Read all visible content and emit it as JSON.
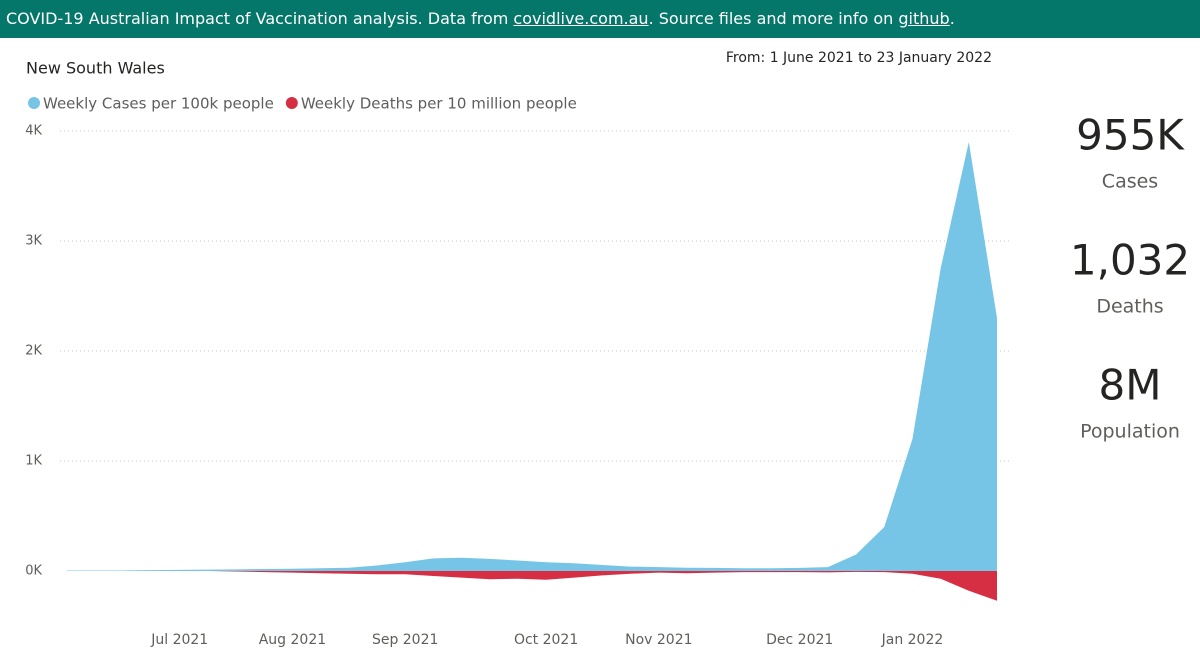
{
  "header": {
    "parts": [
      "COVID-19 Australian Impact of Vaccination analysis. Data from ",
      "covidlive.com.au",
      ". Source files and more info on ",
      "github",
      "."
    ]
  },
  "chart_data": {
    "type": "area",
    "subtitle": "New South Wales",
    "date_range": "From: 1 June 2021 to 23 January 2022",
    "categories": [
      null,
      null,
      null,
      null,
      "Jul 2021",
      null,
      null,
      null,
      "Aug 2021",
      null,
      null,
      null,
      "Sep 2021",
      null,
      null,
      null,
      null,
      "Oct 2021",
      null,
      null,
      null,
      "Nov 2021",
      null,
      null,
      null,
      null,
      "Dec 2021",
      null,
      null,
      null,
      "Jan 2022",
      null,
      null,
      null
    ],
    "series": [
      {
        "name": "Weekly Cases per 100k people",
        "color": "#76c5e6",
        "values": [
          5,
          5,
          5,
          8,
          10,
          12,
          15,
          18,
          20,
          25,
          30,
          50,
          80,
          115,
          120,
          110,
          95,
          80,
          70,
          55,
          40,
          35,
          30,
          28,
          25,
          25,
          28,
          35,
          150,
          400,
          1200,
          2750,
          3900,
          2300
        ]
      },
      {
        "name": "Weekly Deaths per 10 million people",
        "color": "#d62f43",
        "values": [
          0,
          0,
          0,
          0,
          0,
          0,
          -5,
          -10,
          -15,
          -20,
          -25,
          -30,
          -30,
          -45,
          -60,
          -75,
          -70,
          -80,
          -60,
          -40,
          -25,
          -15,
          -20,
          -15,
          -10,
          -10,
          -10,
          -12,
          -8,
          -10,
          -25,
          -70,
          -180,
          -270
        ]
      }
    ],
    "ylim": [
      -350,
      4000
    ],
    "yticks": [
      {
        "value": 0,
        "label": "0K"
      },
      {
        "value": 1000,
        "label": "1K"
      },
      {
        "value": 2000,
        "label": "2K"
      },
      {
        "value": 3000,
        "label": "3K"
      },
      {
        "value": 4000,
        "label": "4K"
      }
    ],
    "grid": true
  },
  "kpis": [
    {
      "value": "955K",
      "label": "Cases"
    },
    {
      "value": "1,032",
      "label": "Deaths"
    },
    {
      "value": "8M",
      "label": "Population"
    }
  ]
}
